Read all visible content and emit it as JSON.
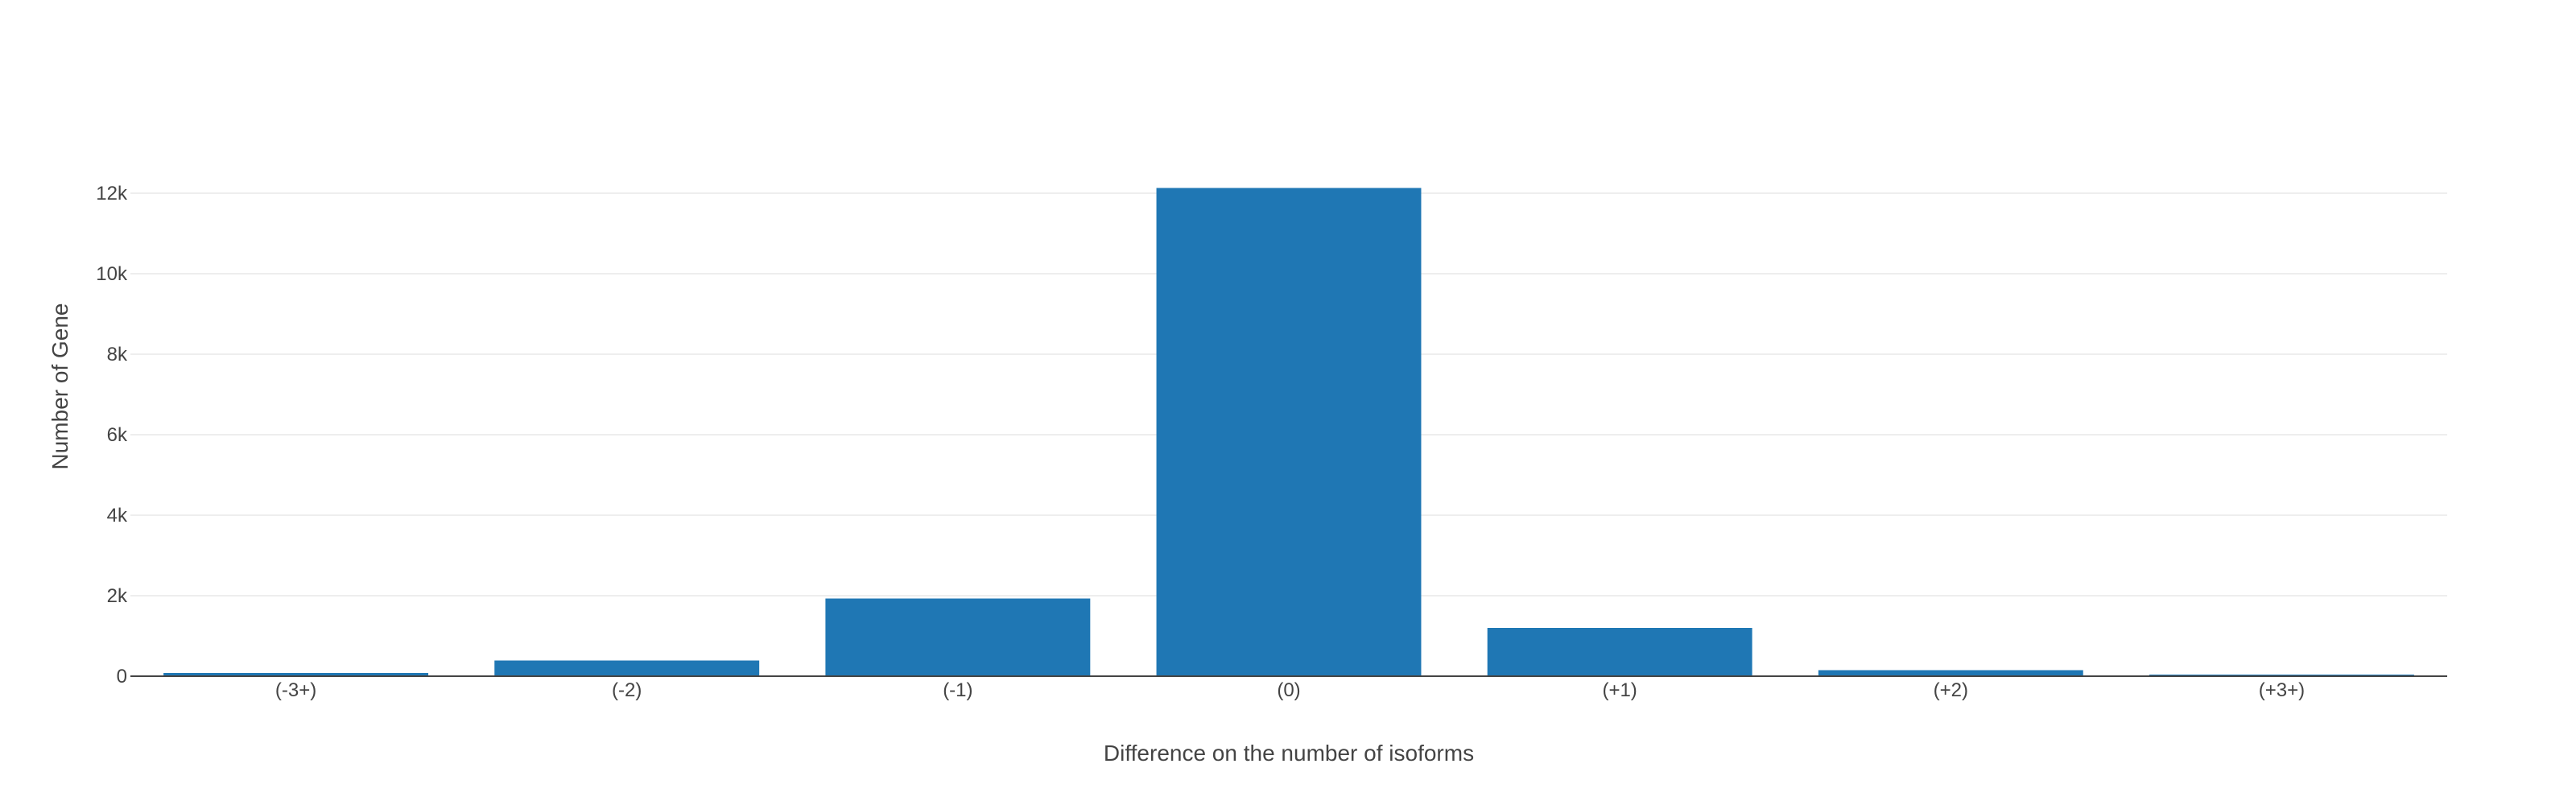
{
  "chart_data": {
    "type": "bar",
    "categories": [
      "(-3+)",
      "(-2)",
      "(-1)",
      "(0)",
      "(+1)",
      "(+2)",
      "(+3+)"
    ],
    "values": [
      80,
      390,
      1930,
      12130,
      1200,
      150,
      40
    ],
    "xlabel": "Difference on the number of isoforms",
    "ylabel": "Number of Gene",
    "ylim": [
      0,
      12800
    ],
    "yticks": [
      0,
      2000,
      4000,
      6000,
      8000,
      10000,
      12000
    ],
    "ytick_labels": [
      "0",
      "2k",
      "4k",
      "6k",
      "8k",
      "10k",
      "12k"
    ],
    "grid": true,
    "legend": "none",
    "bar_color": "#1f77b4",
    "grid_color": "#eeeeee",
    "axis_color": "#444444"
  }
}
